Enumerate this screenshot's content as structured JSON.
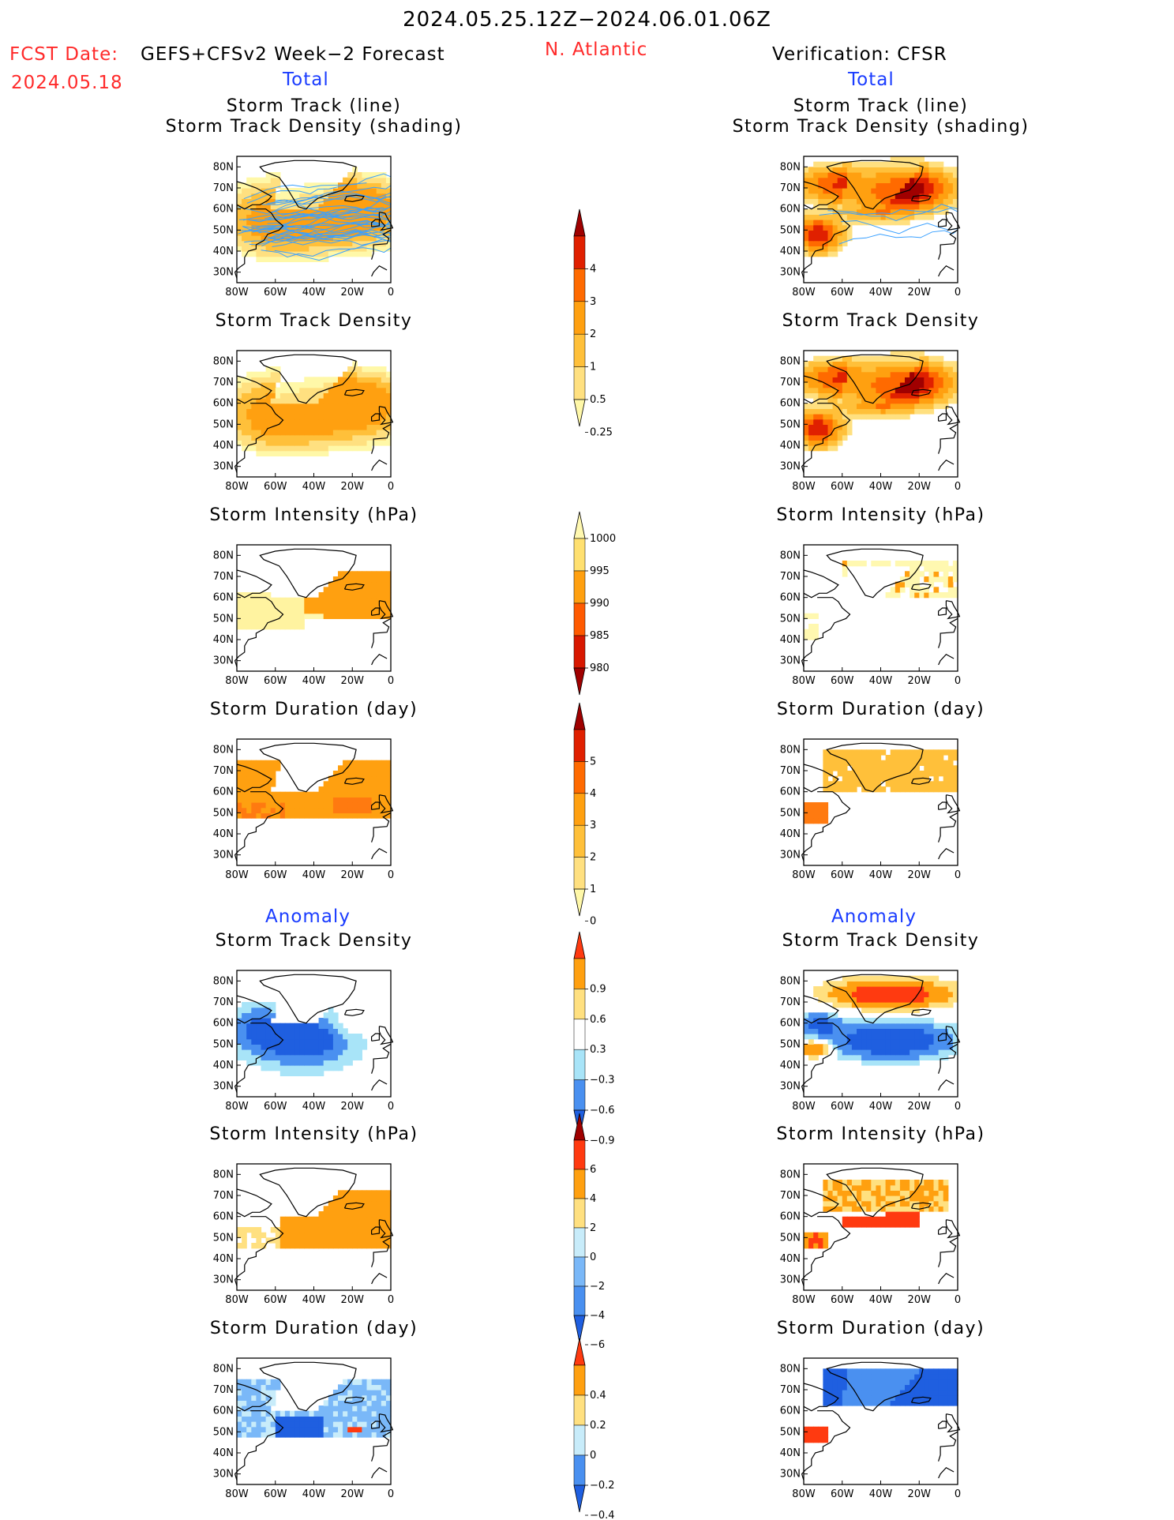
{
  "header": {
    "title": "2024.05.25.12Z−2024.06.01.06Z",
    "fcst_label": "FCST Date:",
    "model": "GEFS+CFSv2 Week−2 Forecast",
    "fcst_date": "2024.05.18",
    "region": "N. Atlantic",
    "verification": "Verification: CFSR",
    "left_total": "Total",
    "right_total": "Total"
  },
  "sections": {
    "left_anomaly": "Anomaly",
    "right_anomaly": "Anomaly"
  },
  "axes": {
    "lat_ticks": [
      "80N",
      "70N",
      "60N",
      "50N",
      "40N",
      "30N"
    ],
    "lon_ticks": [
      "80W",
      "60W",
      "40W",
      "20W",
      "0"
    ]
  },
  "panels": {
    "left": [
      {
        "title1": "Storm Track (line)",
        "title2": "Storm Track Density (shading)",
        "field": "track",
        "source": "forecast"
      },
      {
        "title1": "Storm Track Density",
        "field": "density",
        "source": "forecast"
      },
      {
        "title1": "Storm Intensity (hPa)",
        "field": "intensity",
        "source": "forecast"
      },
      {
        "title1": "Storm Duration (day)",
        "field": "duration",
        "source": "forecast"
      },
      {
        "title1": "Storm Track Density",
        "field": "density_anom",
        "source": "forecast"
      },
      {
        "title1": "Storm Intensity (hPa)",
        "field": "intensity_anom",
        "source": "forecast"
      },
      {
        "title1": "Storm Duration (day)",
        "field": "duration_anom",
        "source": "forecast"
      }
    ],
    "right": [
      {
        "title1": "Storm Track (line)",
        "title2": "Storm Track Density (shading)",
        "field": "track",
        "source": "cfsr"
      },
      {
        "title1": "Storm Track Density",
        "field": "density",
        "source": "cfsr"
      },
      {
        "title1": "Storm Intensity (hPa)",
        "field": "intensity",
        "source": "cfsr"
      },
      {
        "title1": "Storm Duration (day)",
        "field": "duration",
        "source": "cfsr"
      },
      {
        "title1": "Storm Track Density",
        "field": "density_anom",
        "source": "cfsr"
      },
      {
        "title1": "Storm Intensity (hPa)",
        "field": "intensity_anom",
        "source": "cfsr"
      },
      {
        "title1": "Storm Duration (day)",
        "field": "duration_anom",
        "source": "cfsr"
      }
    ]
  },
  "colorbars": [
    {
      "name": "density",
      "labels": [
        "0.25",
        "0.5",
        "1",
        "2",
        "3",
        "4"
      ],
      "colors": [
        "#fff8a8",
        "#ffe080",
        "#ffc03a",
        "#ffa010",
        "#ff6a00",
        "#e02000",
        "#a00000"
      ],
      "extend": "both"
    },
    {
      "name": "intensity",
      "labels": [
        "1000",
        "995",
        "990",
        "985",
        "980"
      ],
      "colors": [
        "#fff8b0",
        "#ffe070",
        "#ffa010",
        "#ff5a00",
        "#d81800",
        "#a00000"
      ],
      "extend": "both",
      "reverse": true
    },
    {
      "name": "duration",
      "labels": [
        "0",
        "1",
        "2",
        "3",
        "4",
        "5"
      ],
      "colors": [
        "#fff8a8",
        "#ffe080",
        "#ffc03a",
        "#ffa010",
        "#ff6a00",
        "#e02000",
        "#a00000"
      ],
      "extend": "both"
    },
    {
      "name": "density_anom",
      "labels": [
        "−0.9",
        "−0.6",
        "−0.3",
        "0.3",
        "0.6",
        "0.9"
      ],
      "colors": [
        "#1f5fe0",
        "#4a90f0",
        "#a8e4f8",
        "#ffffff",
        "#ffe080",
        "#ffa010",
        "#ff3a10"
      ],
      "extend": "both"
    },
    {
      "name": "intensity_anom",
      "labels": [
        "−6",
        "−4",
        "−2",
        "0",
        "2",
        "4",
        "6"
      ],
      "colors": [
        "#1f5fe0",
        "#4a90f0",
        "#7ab8f8",
        "#c8ecfa",
        "#ffe080",
        "#ffa010",
        "#ff3a10",
        "#a00000"
      ],
      "extend": "both"
    },
    {
      "name": "duration_anom",
      "labels": [
        "−0.4",
        "−0.2",
        "0",
        "0.2",
        "0.4"
      ],
      "colors": [
        "#1f5fe0",
        "#4a90f0",
        "#c8ecfa",
        "#ffe080",
        "#ffa010",
        "#ff3a10"
      ],
      "extend": "both"
    }
  ],
  "colors": {
    "title_red": "#ff2a2a",
    "label_blue": "#1a3cff",
    "track_line": "#3aa0ff"
  }
}
